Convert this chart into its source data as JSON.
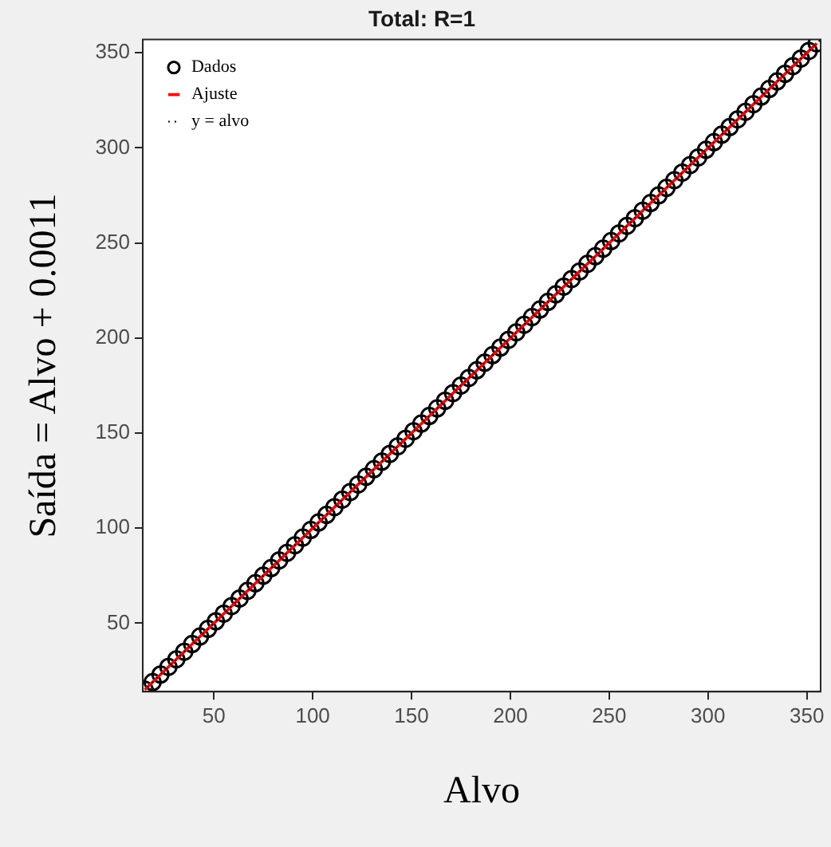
{
  "chart_data": {
    "type": "scatter",
    "title": "Total: R=1",
    "xlabel": "Alvo",
    "ylabel": "Saída = Alvo + 0.0011",
    "x": [
      15,
      19,
      23,
      27,
      31,
      35,
      39,
      43,
      47,
      51,
      55,
      59,
      63,
      67,
      71,
      75,
      79,
      83,
      87,
      91,
      95,
      99,
      103,
      107,
      111,
      115,
      119,
      123,
      127,
      131,
      135,
      139,
      143,
      147,
      151,
      155,
      159,
      163,
      167,
      171,
      175,
      179,
      183,
      187,
      191,
      195,
      199,
      203,
      207,
      211,
      215,
      219,
      223,
      227,
      231,
      235,
      239,
      243,
      247,
      251,
      255,
      259,
      263,
      267,
      271,
      275,
      279,
      283,
      287,
      291,
      295,
      299,
      303,
      307,
      311,
      315,
      319,
      323,
      327,
      331,
      335,
      339,
      343,
      347,
      351,
      355
    ],
    "series": [
      {
        "name": "Dados",
        "marker": "circle",
        "color": "#000000",
        "values": [
          15,
          19,
          23,
          27,
          31,
          35,
          39,
          43,
          47,
          51,
          55,
          59,
          63,
          67,
          71,
          75,
          79,
          83,
          87,
          91,
          95,
          99,
          103,
          107,
          111,
          115,
          119,
          123,
          127,
          131,
          135,
          139,
          143,
          147,
          151,
          155,
          159,
          163,
          167,
          171,
          175,
          179,
          183,
          187,
          191,
          195,
          199,
          203,
          207,
          211,
          215,
          219,
          223,
          227,
          231,
          235,
          239,
          243,
          247,
          251,
          255,
          259,
          263,
          267,
          271,
          275,
          279,
          283,
          287,
          291,
          295,
          299,
          303,
          307,
          311,
          315,
          319,
          323,
          327,
          331,
          335,
          339,
          343,
          347,
          351,
          355
        ]
      },
      {
        "name": "Ajuste",
        "type": "line",
        "line_style": "solid",
        "color": "#ff0000",
        "x": [
          15,
          355
        ],
        "values": [
          15,
          355
        ]
      },
      {
        "name": "y = alvo",
        "type": "line",
        "line_style": "dotted",
        "color": "#000000",
        "x": [
          14,
          357
        ],
        "values": [
          14,
          357
        ]
      }
    ],
    "xlim": [
      14,
      357
    ],
    "ylim": [
      14,
      357
    ],
    "xticks": [
      50,
      100,
      150,
      200,
      250,
      300,
      350
    ],
    "yticks": [
      50,
      100,
      150,
      200,
      250,
      300,
      350
    ],
    "grid": false,
    "legend": "top left"
  }
}
